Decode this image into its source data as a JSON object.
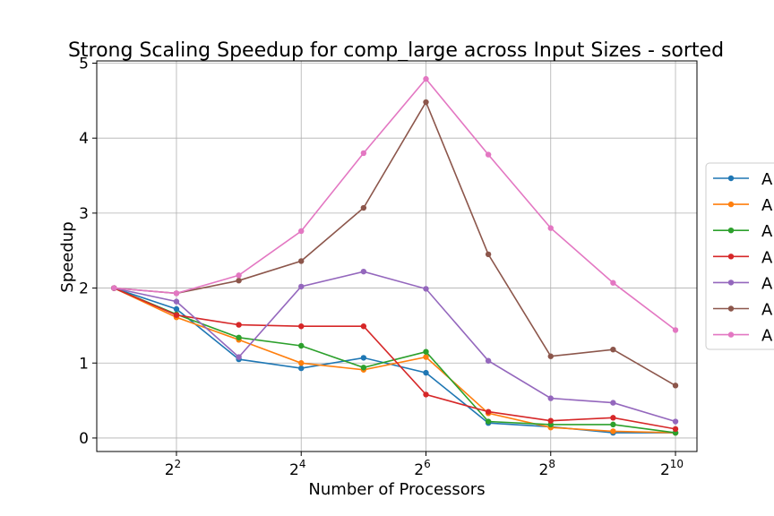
{
  "chart_data": {
    "type": "line",
    "title": "Strong Scaling Speedup for comp_large across Input Sizes - sorted",
    "xlabel": "Number of Processors",
    "ylabel": "Speedup",
    "xscale": "log2",
    "x": [
      2,
      4,
      8,
      16,
      32,
      64,
      128,
      256,
      512,
      1024
    ],
    "xlim": [
      1.65,
      1300
    ],
    "ylim": [
      -0.18,
      5.03
    ],
    "xticks": [
      {
        "base": "2",
        "exp": "2"
      },
      {
        "base": "2",
        "exp": "4"
      },
      {
        "base": "2",
        "exp": "6"
      },
      {
        "base": "2",
        "exp": "8"
      },
      {
        "base": "2",
        "exp": "10"
      }
    ],
    "yticks": [
      "0",
      "1",
      "2",
      "3",
      "4",
      "5"
    ],
    "grid": true,
    "legend_position": "right (cut off)",
    "series": [
      {
        "name": "A",
        "color": "#1f77b4",
        "values": [
          2.0,
          1.72,
          1.05,
          0.93,
          1.07,
          0.87,
          0.2,
          0.15,
          0.07,
          0.07
        ]
      },
      {
        "name": "A",
        "color": "#ff7f0e",
        "values": [
          2.0,
          1.61,
          1.31,
          1.0,
          0.91,
          1.08,
          0.33,
          0.14,
          0.09,
          0.07
        ]
      },
      {
        "name": "A",
        "color": "#2ca02c",
        "values": [
          2.0,
          1.65,
          1.34,
          1.23,
          0.94,
          1.15,
          0.22,
          0.18,
          0.18,
          0.07
        ]
      },
      {
        "name": "A",
        "color": "#d62728",
        "values": [
          2.0,
          1.64,
          1.51,
          1.49,
          1.49,
          0.58,
          0.35,
          0.23,
          0.27,
          0.12
        ]
      },
      {
        "name": "A",
        "color": "#9467bd",
        "values": [
          2.0,
          1.82,
          1.08,
          2.02,
          2.22,
          1.99,
          1.03,
          0.53,
          0.47,
          0.22
        ]
      },
      {
        "name": "A",
        "color": "#8c564b",
        "values": [
          2.0,
          1.93,
          2.1,
          2.36,
          3.07,
          4.48,
          2.45,
          1.09,
          1.18,
          0.7
        ]
      },
      {
        "name": "A",
        "color": "#e377c2",
        "values": [
          2.0,
          1.93,
          2.17,
          2.76,
          3.8,
          4.79,
          3.78,
          2.8,
          2.07,
          1.44
        ]
      }
    ]
  }
}
